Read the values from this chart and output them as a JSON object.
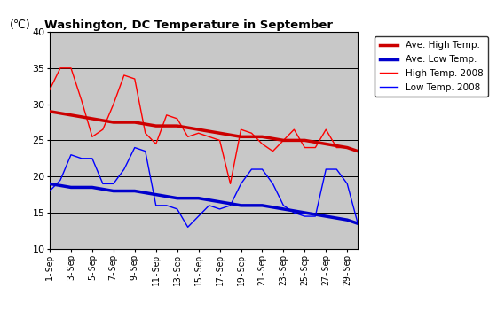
{
  "title": "Washington, DC Temperature in September",
  "ylabel": "(℃)",
  "ylim": [
    10,
    40
  ],
  "yticks": [
    10,
    15,
    20,
    25,
    30,
    35,
    40
  ],
  "x_labels": [
    "1-Sep",
    "3-Sep",
    "5-Sep",
    "7-Sep",
    "9-Sep",
    "11-Sep",
    "13-Sep",
    "15-Sep",
    "17-Sep",
    "19-Sep",
    "21-Sep",
    "23-Sep",
    "25-Sep",
    "27-Sep",
    "29-Sep"
  ],
  "plot_bg_color": "#c8c8c8",
  "ave_high_days": [
    1,
    3,
    5,
    7,
    9,
    11,
    13,
    15,
    17,
    19,
    21,
    23,
    25,
    27,
    29,
    30
  ],
  "ave_high_vals": [
    29,
    28.5,
    28,
    27.5,
    27.5,
    27,
    27,
    26.5,
    26,
    25.5,
    25.5,
    25,
    25,
    24.5,
    24,
    23.5
  ],
  "ave_low_days": [
    1,
    3,
    5,
    7,
    9,
    11,
    13,
    15,
    17,
    19,
    21,
    23,
    25,
    27,
    29,
    30
  ],
  "ave_low_vals": [
    19,
    18.5,
    18.5,
    18,
    18,
    17.5,
    17,
    17,
    16.5,
    16,
    16,
    15.5,
    15,
    14.5,
    14,
    13.5
  ],
  "high_2008_days": [
    1,
    2,
    3,
    4,
    5,
    6,
    7,
    8,
    9,
    10,
    11,
    12,
    13,
    14,
    15,
    16,
    17,
    18,
    19,
    20,
    21,
    22,
    23,
    24,
    25,
    26,
    27,
    28,
    29,
    30
  ],
  "high_2008_vals": [
    32,
    35,
    35,
    30.5,
    25.5,
    26.5,
    30,
    34,
    33.5,
    26,
    24.5,
    28.5,
    28,
    25.5,
    26,
    25.5,
    25,
    19,
    26.5,
    26,
    24.5,
    23.5,
    25,
    26.5,
    24,
    24,
    26.5,
    24,
    24,
    23.5
  ],
  "low_2008_days": [
    1,
    2,
    3,
    4,
    5,
    6,
    7,
    8,
    9,
    10,
    11,
    12,
    13,
    14,
    15,
    16,
    17,
    18,
    19,
    20,
    21,
    22,
    23,
    24,
    25,
    26,
    27,
    28,
    29,
    30
  ],
  "low_2008_vals": [
    18,
    19.5,
    23,
    22.5,
    22.5,
    19,
    19,
    21,
    24,
    23.5,
    16,
    16,
    15.5,
    13,
    14.5,
    16,
    15.5,
    16,
    19,
    21,
    21,
    19,
    16,
    15,
    14.5,
    14.5,
    21,
    21,
    19,
    13.5
  ],
  "ave_high_color": "#cc0000",
  "ave_low_color": "#0000cc",
  "high_2008_color": "#ff0000",
  "low_2008_color": "#0000ff",
  "ave_high_lw": 2.5,
  "ave_low_lw": 2.5,
  "high_2008_lw": 1.0,
  "low_2008_lw": 1.0,
  "grid_color": "#000000",
  "legend_labels": [
    "Ave. High Temp.",
    "Ave. Low Temp.",
    "High Temp. 2008",
    "Low Temp. 2008"
  ]
}
